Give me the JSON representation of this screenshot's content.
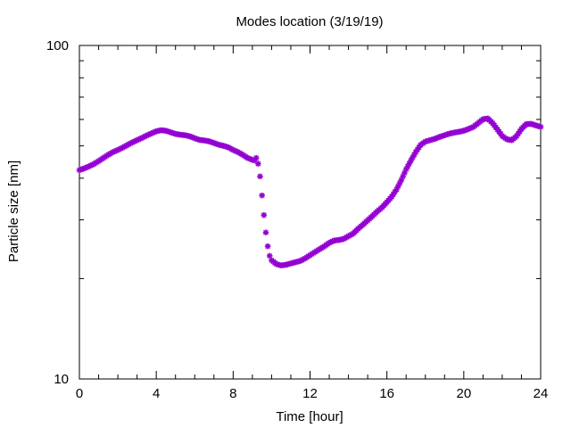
{
  "chart_data": {
    "type": "scatter",
    "title": "Modes location (3/19/19)",
    "xlabel": "Time [hour]",
    "ylabel": "Particle size [nm]",
    "xlim": [
      0,
      24
    ],
    "ylim": [
      10,
      100
    ],
    "yscale": "log",
    "x_ticks": [
      "0",
      "4",
      "8",
      "12",
      "16",
      "20",
      "24"
    ],
    "y_ticks": [
      "10",
      "100"
    ],
    "grid": false,
    "legend": "none",
    "marker_color": "#9400d3",
    "series": [
      {
        "x": [
          0.0,
          0.25,
          0.5,
          0.75,
          1.0,
          1.25,
          1.5,
          1.75,
          2.0,
          2.25,
          2.5,
          2.75,
          3.0,
          3.25,
          3.5,
          3.75,
          4.0,
          4.25,
          4.5,
          4.75,
          5.0,
          5.25,
          5.5,
          5.75,
          6.0,
          6.25,
          6.5,
          6.75,
          7.0,
          7.25,
          7.5,
          7.75,
          8.0,
          8.25,
          8.5,
          8.75,
          9.0,
          9.1,
          9.2,
          9.3,
          9.4,
          9.5,
          9.6,
          9.7,
          9.8,
          9.9,
          10.0,
          10.25,
          10.5,
          10.75,
          11.0,
          11.25,
          11.5,
          11.75,
          12.0,
          12.25,
          12.5,
          12.75,
          13.0,
          13.25,
          13.5,
          13.75,
          14.0,
          14.25,
          14.5,
          14.75,
          15.0,
          15.25,
          15.5,
          15.75,
          16.0,
          16.25,
          16.5,
          16.75,
          17.0,
          17.25,
          17.5,
          17.75,
          18.0,
          18.25,
          18.5,
          18.75,
          19.0,
          19.25,
          19.5,
          19.75,
          20.0,
          20.25,
          20.5,
          20.75,
          21.0,
          21.25,
          21.5,
          21.75,
          22.0,
          22.25,
          22.5,
          22.75,
          23.0,
          23.25,
          23.5,
          23.75,
          24.0
        ],
        "y": [
          42.3,
          42.8,
          43.4,
          44.1,
          45.0,
          46.0,
          47.0,
          47.9,
          48.6,
          49.4,
          50.3,
          51.2,
          52.0,
          52.8,
          53.7,
          54.5,
          55.3,
          55.7,
          55.5,
          54.9,
          54.3,
          54.0,
          53.8,
          53.4,
          52.7,
          52.1,
          51.9,
          51.6,
          51.0,
          50.4,
          50.0,
          49.5,
          48.6,
          47.9,
          47.0,
          46.0,
          45.4,
          45.2,
          46.0,
          44.2,
          40.5,
          35.5,
          31.0,
          27.5,
          25.0,
          23.4,
          22.7,
          22.1,
          21.9,
          22.0,
          22.2,
          22.4,
          22.6,
          23.0,
          23.5,
          24.0,
          24.5,
          25.0,
          25.6,
          26.0,
          26.1,
          26.3,
          26.8,
          27.3,
          28.2,
          29.0,
          29.9,
          30.8,
          31.8,
          32.7,
          33.9,
          35.2,
          37.0,
          39.5,
          42.5,
          45.2,
          47.9,
          50.3,
          51.5,
          52.0,
          52.5,
          53.2,
          53.8,
          54.4,
          54.8,
          55.1,
          55.5,
          56.2,
          57.0,
          58.5,
          60.1,
          60.4,
          58.5,
          56.0,
          53.5,
          52.3,
          52.0,
          53.5,
          56.2,
          58.1,
          58.2,
          57.6,
          57.0
        ]
      }
    ]
  }
}
